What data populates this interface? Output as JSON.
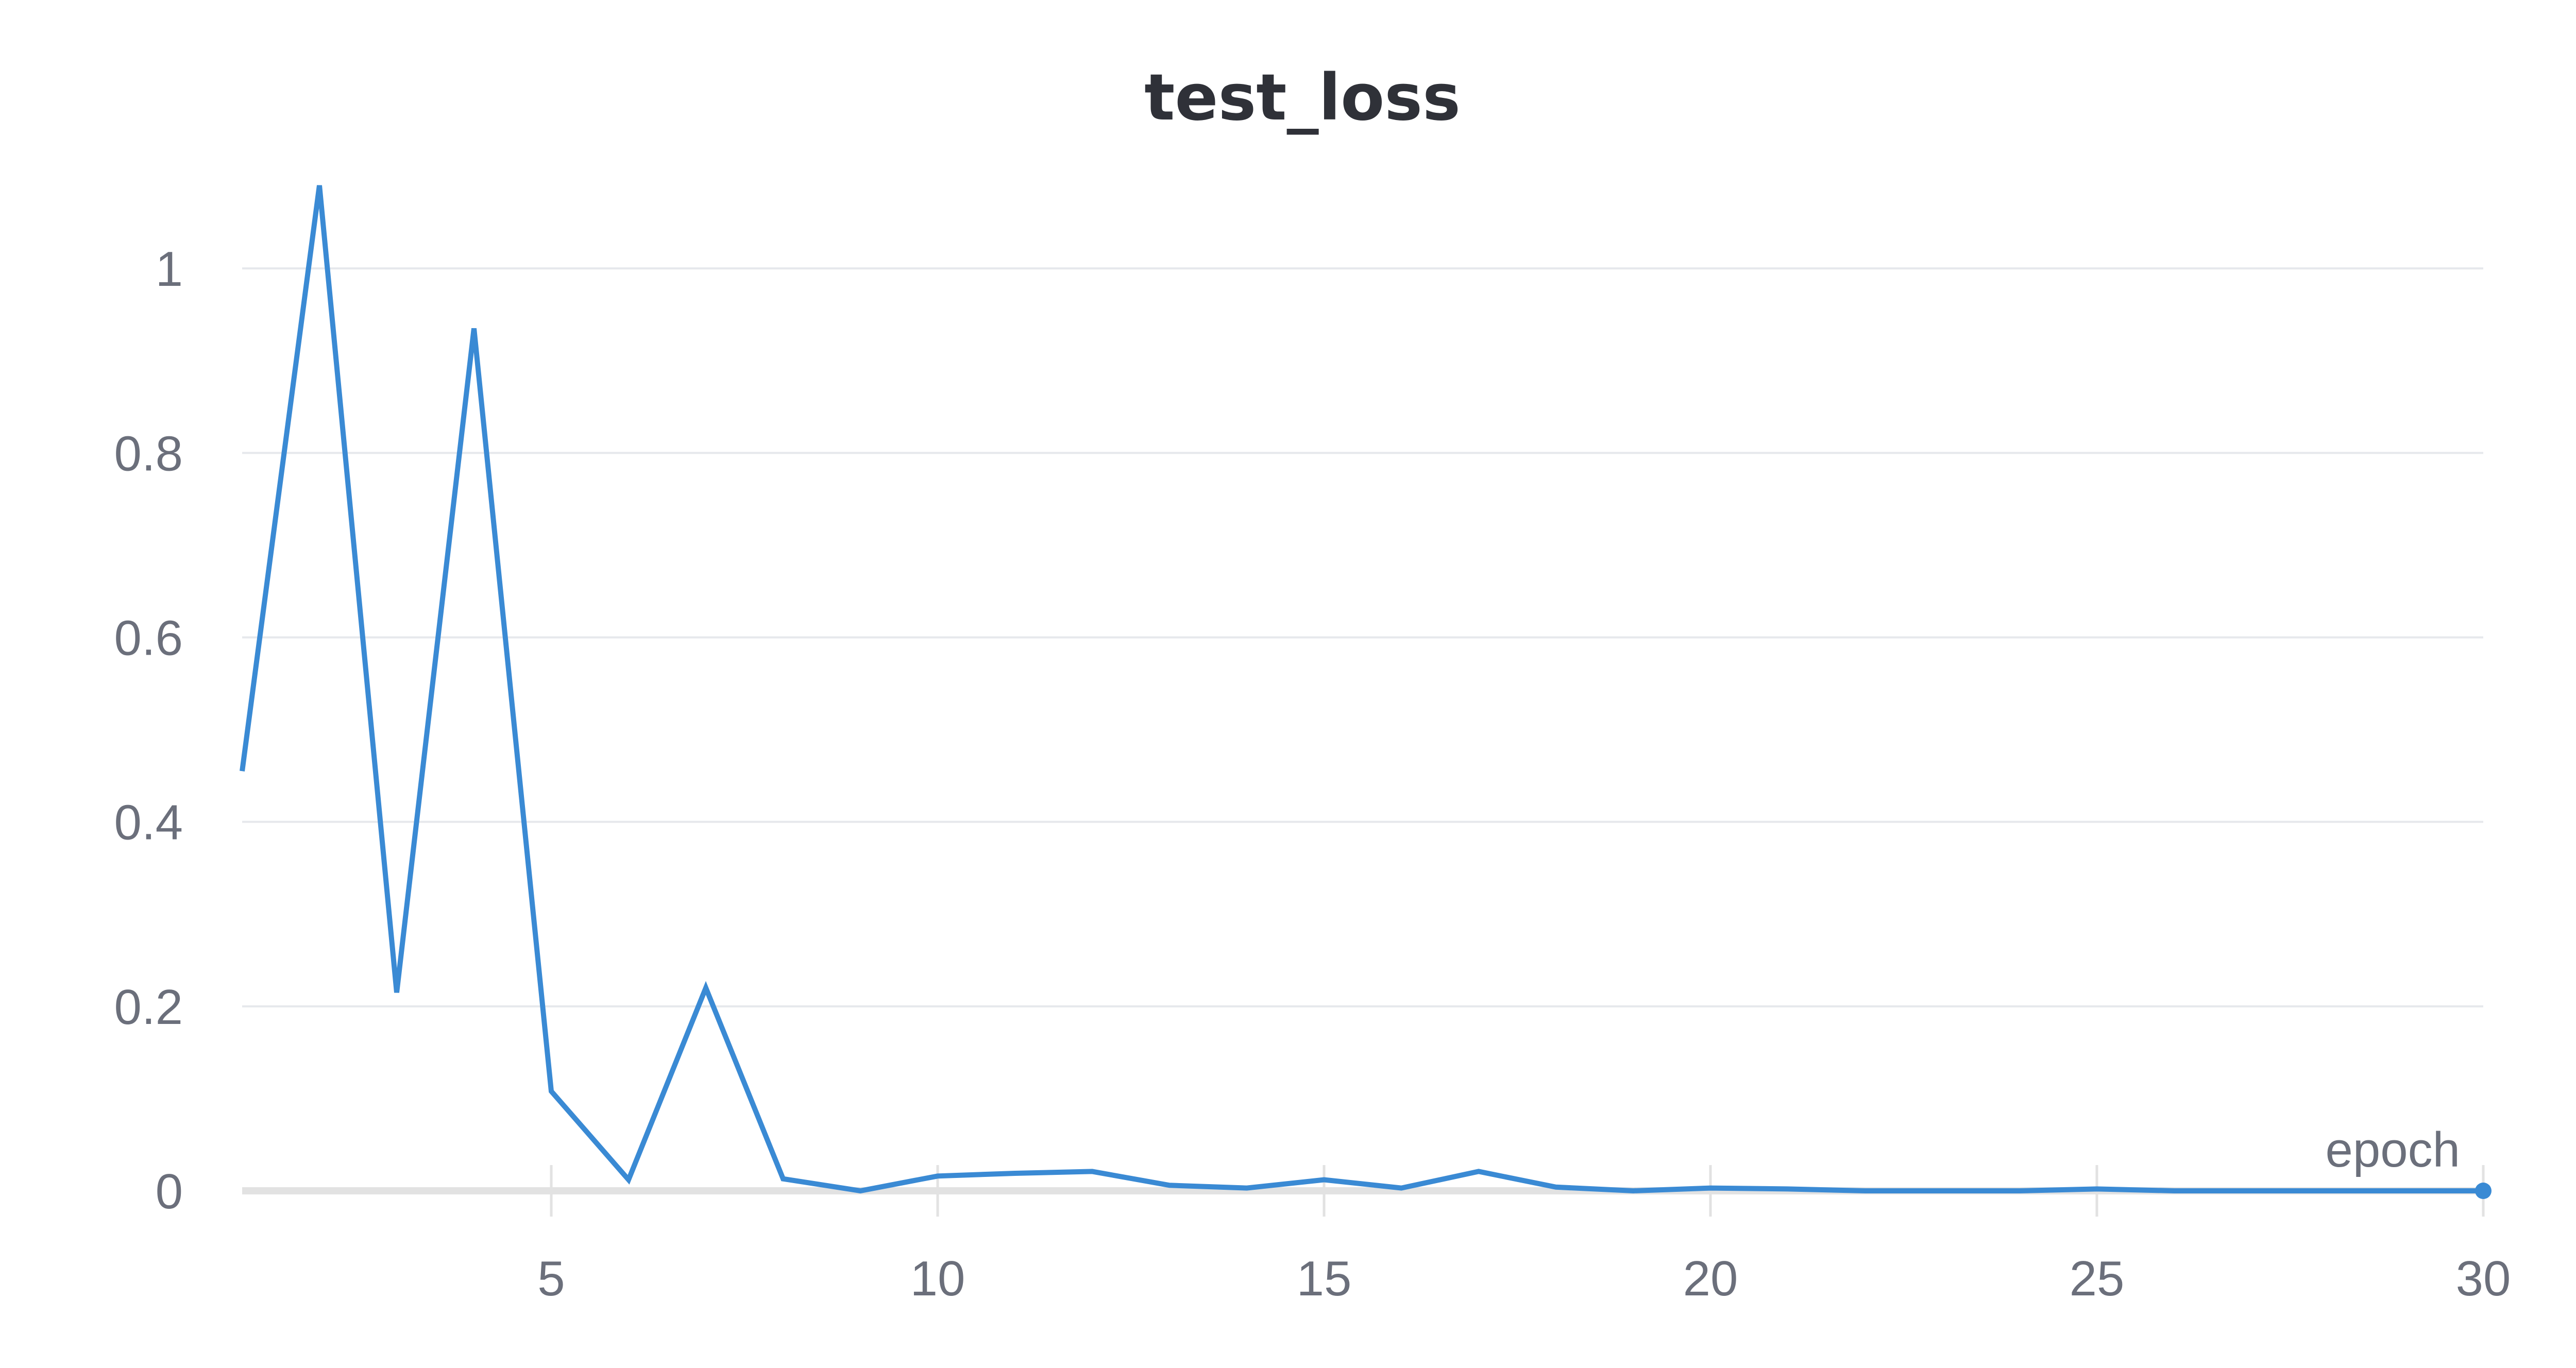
{
  "chart_data": {
    "type": "line",
    "title": "test_loss",
    "xlabel": "epoch",
    "ylabel": "",
    "xlim": [
      1,
      30
    ],
    "ylim": [
      0,
      1.09
    ],
    "x_ticks": [
      5,
      10,
      15,
      20,
      25,
      30
    ],
    "x_tick_labels": [
      "5",
      "10",
      "15",
      "20",
      "25",
      "30"
    ],
    "y_ticks": [
      0,
      0.2,
      0.4,
      0.6,
      0.8,
      1
    ],
    "y_tick_labels": [
      "0",
      "0.2",
      "0.4",
      "0.6",
      "0.8",
      "1"
    ],
    "grid": true,
    "legend": "none",
    "colors": {
      "line": "#3a8ad4",
      "grid": "#e6e8ec",
      "baseline": "#e2e2e2",
      "tick_text": "#6b6f7b",
      "title_text": "#2f3138"
    },
    "series": [
      {
        "x": [
          1,
          2,
          3,
          4,
          5,
          6,
          7,
          8,
          9,
          10,
          11,
          12,
          13,
          14,
          15,
          16,
          17,
          18,
          19,
          20,
          21,
          22,
          23,
          24,
          25,
          26,
          27,
          28,
          29,
          30
        ],
        "y": [
          0.455,
          1.09,
          0.215,
          0.935,
          0.108,
          0.012,
          0.22,
          0.013,
          0.0,
          0.016,
          0.019,
          0.021,
          0.006,
          0.003,
          0.012,
          0.003,
          0.021,
          0.004,
          0.0,
          0.003,
          0.002,
          0.0,
          0.0,
          0.0,
          0.002,
          0.0,
          0.0,
          0.0,
          0.0,
          0.0
        ]
      }
    ]
  }
}
